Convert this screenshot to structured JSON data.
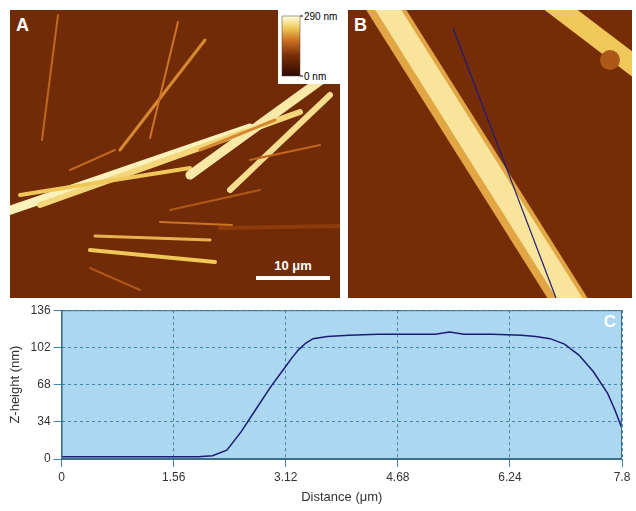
{
  "images": [
    {
      "label": "A",
      "colorbar": {
        "range": [
          0,
          290
        ],
        "ticks": [
          {
            "value": 290,
            "label": "290 nm"
          },
          {
            "value": 0,
            "label": "0 nm"
          }
        ]
      },
      "scale_bar": {
        "value": 10,
        "label": "10 μm"
      }
    },
    {
      "label": "B"
    }
  ],
  "chart_data": {
    "panel": "C",
    "type": "line",
    "x": [
      0,
      0.5,
      1.0,
      1.5,
      1.9,
      2.1,
      2.3,
      2.5,
      2.7,
      2.9,
      3.1,
      3.2,
      3.3,
      3.4,
      3.5,
      3.7,
      4.0,
      4.4,
      4.8,
      5.2,
      5.4,
      5.6,
      6.0,
      6.4,
      6.6,
      6.8,
      7.0,
      7.2,
      7.4,
      7.6,
      7.7,
      7.8
    ],
    "values": [
      2,
      2,
      2,
      2,
      2,
      3,
      8,
      25,
      45,
      65,
      83,
      92,
      100,
      106,
      110,
      112,
      113,
      114,
      114,
      114,
      116,
      114,
      114,
      113,
      112,
      110,
      105,
      95,
      80,
      60,
      45,
      28
    ],
    "color": "#1c1c78",
    "xlabel": "Distance (μm)",
    "ylabel": "Z-height (nm)",
    "xlim": [
      0,
      7.8
    ],
    "ylim": [
      0,
      136
    ],
    "xticks": [
      0,
      1.56,
      3.12,
      4.68,
      6.24,
      7.8
    ],
    "yticks": [
      0,
      34,
      68,
      102,
      136
    ],
    "grid": true
  }
}
